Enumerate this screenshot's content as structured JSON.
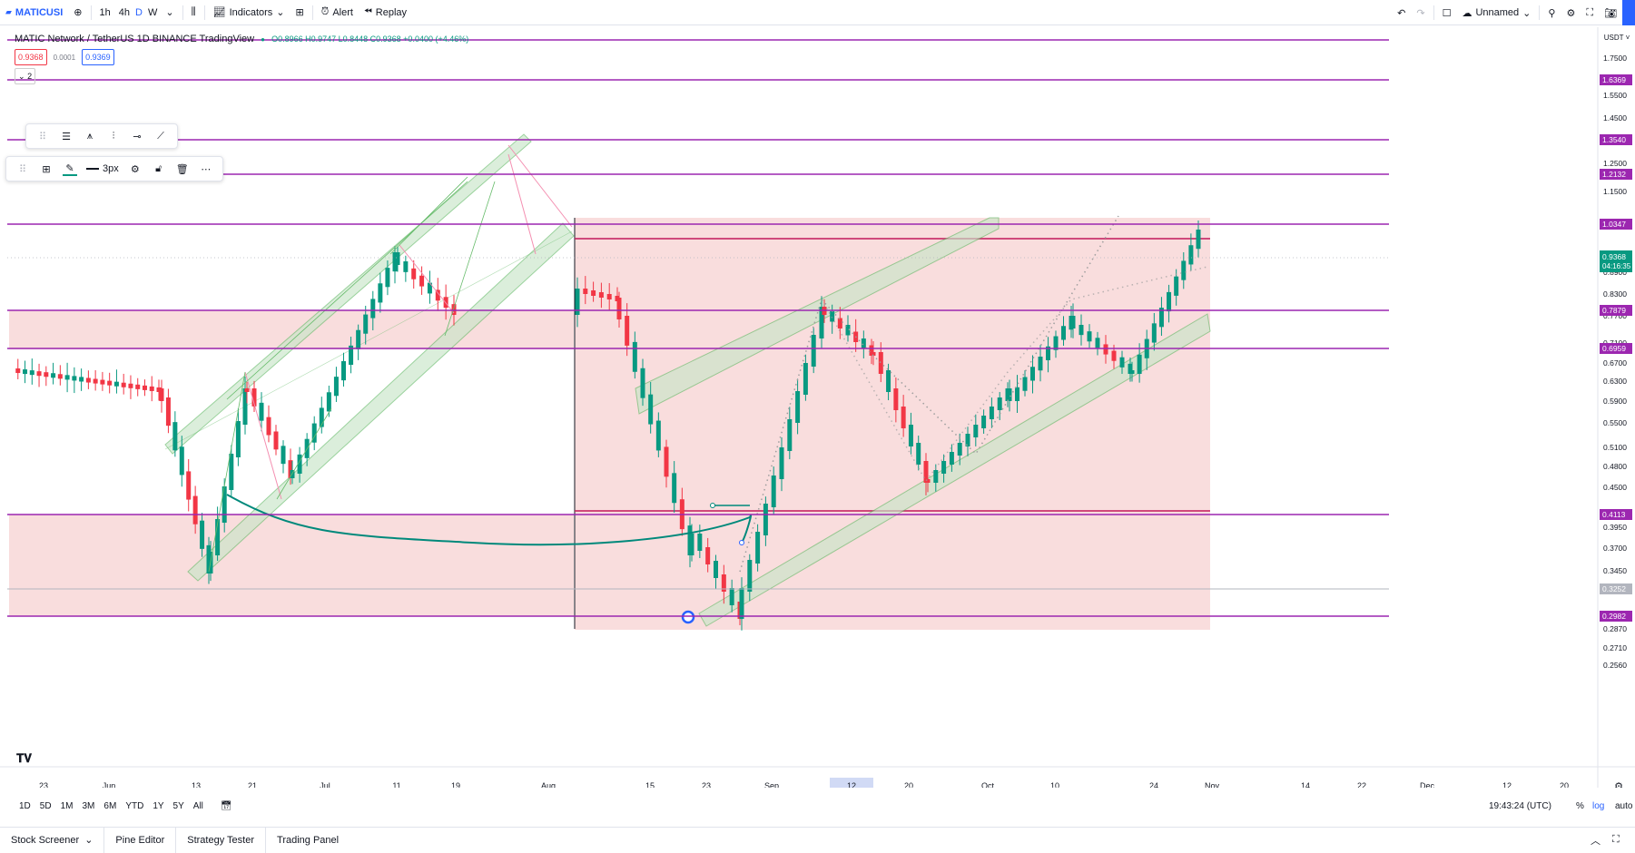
{
  "toolbar": {
    "symbol": "MATICUSI",
    "intervals": [
      "1h",
      "4h",
      "D",
      "W"
    ],
    "indicators_label": "Indicators",
    "alert_label": "Alert",
    "replay_label": "Replay",
    "layout_name": "Unnamed"
  },
  "legend": {
    "title": "MATIC Network / TetherUS  1D  BINANCE  TradingView",
    "ohlc": "O0.8966 H0.9747 L0.8448 C0.9368 +0.0400 (+4.46%)",
    "bid": "0.9368",
    "spread": "0.0001",
    "ask": "0.9369",
    "collapse": "2"
  },
  "draw_toolbar": {
    "width_label": "3px"
  },
  "price_axis": {
    "currency": "USDT",
    "ticks": [
      "1.7500",
      "1.5500",
      "1.4500",
      "1.2500",
      "1.1500",
      "0.8900",
      "0.8300",
      "0.7700",
      "0.7100",
      "0.6700",
      "0.6300",
      "0.5900",
      "0.5500",
      "0.5100",
      "0.4800",
      "0.4500",
      "0.3950",
      "0.3700",
      "0.3450",
      "0.2870",
      "0.2710",
      "0.2560"
    ],
    "levels": [
      {
        "label": "1.6369",
        "color": "#9c27b0"
      },
      {
        "label": "1.3540",
        "color": "#9c27b0"
      },
      {
        "label": "1.2132",
        "color": "#9c27b0"
      },
      {
        "label": "1.0347",
        "color": "#9c27b0"
      },
      {
        "label": "0.7879",
        "color": "#9c27b0"
      },
      {
        "label": "0.6959",
        "color": "#9c27b0"
      },
      {
        "label": "0.4113",
        "color": "#9c27b0"
      },
      {
        "label": "0.2982",
        "color": "#9c27b0"
      },
      {
        "label": "0.3252",
        "color": "#b2b5be"
      }
    ],
    "current_price": "0.9368",
    "countdown": "04:16:35"
  },
  "time_axis": {
    "labels": [
      "23",
      "Jun",
      "13",
      "21",
      "Jul",
      "11",
      "19",
      "Aug",
      "15",
      "23",
      "Sep",
      "12",
      "20",
      "Oct",
      "10",
      "24",
      "Nov",
      "14",
      "22",
      "Dec",
      "12",
      "20"
    ],
    "highlight": "12"
  },
  "bottom": {
    "ranges": [
      "1D",
      "5D",
      "1M",
      "3M",
      "6M",
      "YTD",
      "1Y",
      "5Y",
      "All"
    ],
    "clock": "19:43:24 (UTC)",
    "pct": "%",
    "log": "log",
    "auto": "auto"
  },
  "tabs": [
    "Stock Screener",
    "Pine Editor",
    "Strategy Tester",
    "Trading Panel"
  ],
  "colors": {
    "up": "#089981",
    "down": "#f23645",
    "level": "#9c27b0",
    "zone": "#f8d7d7",
    "channel": "#c8e6c9"
  }
}
